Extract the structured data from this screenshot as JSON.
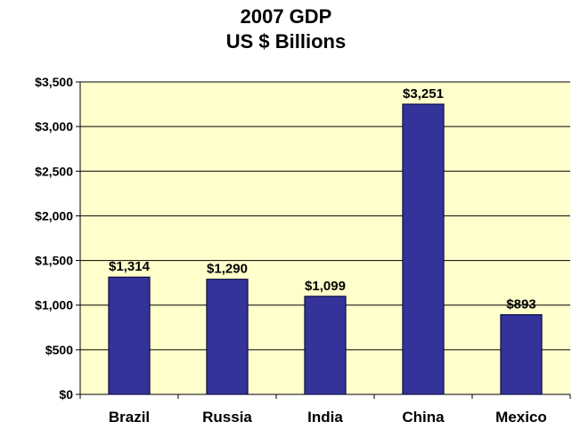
{
  "colors": {
    "plot_background": "#FFFFCC",
    "bar_fill": "#333399",
    "bar_stroke": "#000033",
    "gridline": "#000000",
    "axis": "#000000",
    "text": "#000000"
  },
  "chart_data": {
    "type": "bar",
    "title_lines": [
      "2007 GDP",
      "US $ Billions"
    ],
    "xlabel": "",
    "ylabel": "",
    "categories": [
      "Brazil",
      "Russia",
      "India",
      "China",
      "Mexico"
    ],
    "series": [
      {
        "values": [
          1314,
          1290,
          1099,
          3251,
          893
        ],
        "data_labels": [
          "$1,314",
          "$1,290",
          "$1,099",
          "$3,251",
          "$893"
        ]
      }
    ],
    "ylim": [
      0,
      3500
    ],
    "yticks": [
      0,
      500,
      1000,
      1500,
      2000,
      2500,
      3000,
      3500
    ],
    "ytick_labels": [
      "$0",
      "$500",
      "$1,000",
      "$1,500",
      "$2,000",
      "$2,500",
      "$3,000",
      "$3,500"
    ],
    "grid": true,
    "legend": "none"
  }
}
